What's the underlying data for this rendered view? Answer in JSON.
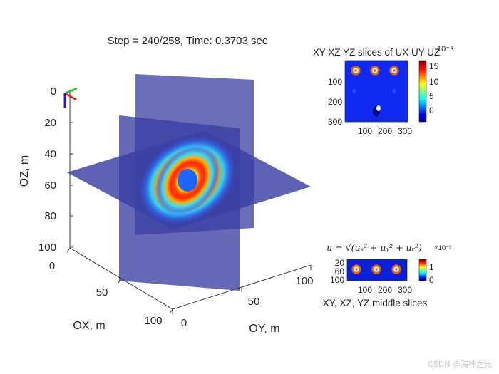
{
  "title": "Step = 240/258, Time: 0.3703 sec",
  "watermark": "CSDN @海神之光",
  "chart_data": [
    {
      "type": "heatmap",
      "panel": "3d-slices",
      "title": "Step = 240/258, Time: 0.3703 sec",
      "xlabel": "OX, m",
      "ylabel": "OY, m",
      "zlabel": "OZ, m",
      "x_ticks": [
        "0",
        "50",
        "100"
      ],
      "y_ticks": [
        "0",
        "50",
        "100"
      ],
      "z_ticks": [
        "0",
        "20",
        "40",
        "60",
        "80",
        "100"
      ],
      "xlim": [
        0,
        100
      ],
      "ylim": [
        0,
        100
      ],
      "zlim": [
        0,
        100
      ],
      "z_reversed": true,
      "grid": false,
      "slices": [
        "XY",
        "XZ",
        "YZ"
      ],
      "colormap": "jet",
      "plane_color": "#3a3fa3"
    },
    {
      "type": "heatmap",
      "panel": "top-right",
      "title": "XY XZ YZ slices of UX UY UZ",
      "x_ticks": [
        "100",
        "200",
        "300"
      ],
      "y_ticks": [
        "100",
        "200",
        "300"
      ],
      "xlim": [
        0,
        360
      ],
      "ylim": [
        0,
        300
      ],
      "colorbar_ticks": [
        "15",
        "10",
        "5",
        "0"
      ],
      "colorbar_range": [
        -2,
        17
      ],
      "colorbar_exponent": "10⁻⁴",
      "colormap": "jet"
    },
    {
      "type": "heatmap",
      "panel": "bottom-right",
      "title": "u = √(uₓ² + uᵧ² + uᵣ²)",
      "xlabel": "XY, XZ, YZ middle slices",
      "x_ticks": [
        "100",
        "200",
        "300"
      ],
      "y_ticks": [
        "20",
        "60",
        "100"
      ],
      "xlim": [
        0,
        360
      ],
      "ylim": [
        0,
        120
      ],
      "colorbar_ticks": [
        "1",
        "0"
      ],
      "colorbar_range": [
        0,
        1.5
      ],
      "colorbar_exponent": "×10⁻³",
      "colormap": "jet"
    }
  ]
}
